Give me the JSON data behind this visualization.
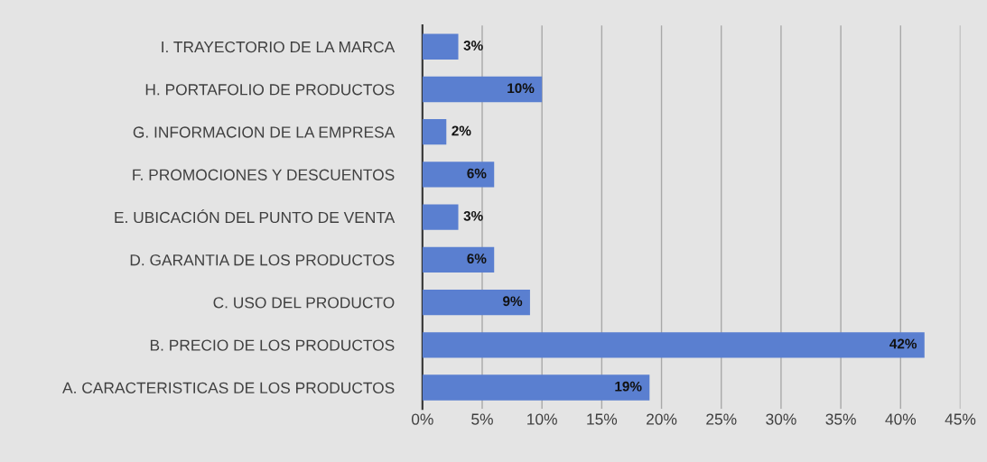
{
  "chart_data": {
    "type": "bar",
    "orientation": "horizontal",
    "categories": [
      "I. TRAYECTORIO DE LA MARCA",
      "H. PORTAFOLIO DE PRODUCTOS",
      "G. INFORMACION DE LA EMPRESA",
      "F. PROMOCIONES Y DESCUENTOS",
      "E. UBICACIÓN DEL PUNTO DE VENTA",
      "D. GARANTIA DE LOS PRODUCTOS",
      "C. USO DEL PRODUCTO",
      "B. PRECIO DE LOS PRODUCTOS",
      "A. CARACTERISTICAS DE LOS PRODUCTOS"
    ],
    "values": [
      3,
      10,
      2,
      6,
      3,
      6,
      9,
      42,
      19
    ],
    "value_labels": [
      "3%",
      "10%",
      "2%",
      "6%",
      "3%",
      "6%",
      "9%",
      "42%",
      "19%"
    ],
    "color": "#5a7fd0",
    "xlim": [
      0,
      45
    ],
    "xticks": [
      {
        "value": 0,
        "label": "0%"
      },
      {
        "value": 5,
        "label": "5%"
      },
      {
        "value": 10,
        "label": "10%"
      },
      {
        "value": 15,
        "label": "15%"
      },
      {
        "value": 20,
        "label": "20%"
      },
      {
        "value": 25,
        "label": "25%"
      },
      {
        "value": 30,
        "label": "30%"
      },
      {
        "value": 35,
        "label": "35%"
      },
      {
        "value": 40,
        "label": "40%"
      },
      {
        "value": 45,
        "label": "45%"
      }
    ],
    "grid": "x",
    "legend": false
  }
}
